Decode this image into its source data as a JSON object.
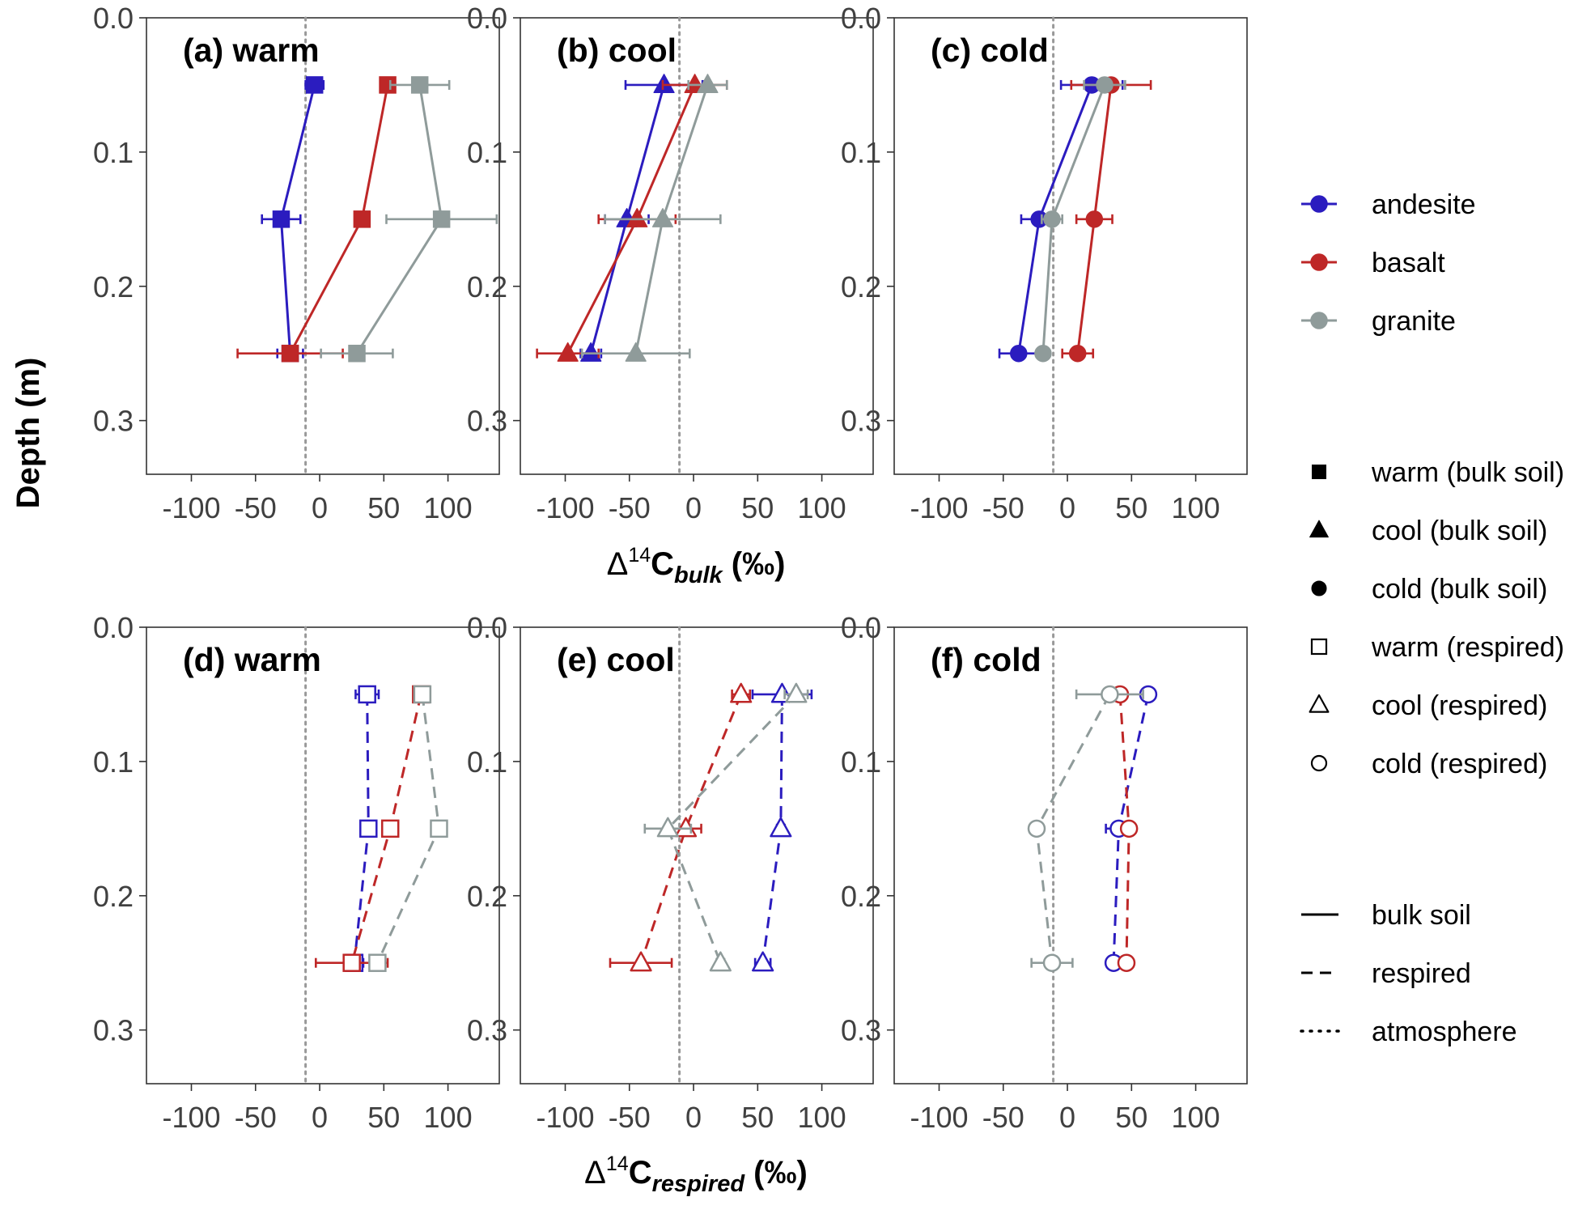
{
  "colors": {
    "andesite": "#2b1cbf",
    "basalt": "#be2727",
    "granite": "#8f9b9a",
    "atmosphere_line": "#999999",
    "axis_text": "#404040"
  },
  "y_axis_label": "Depth (m)",
  "x_axis_labels": [
    {
      "prefix": "Δ",
      "sup": "14",
      "main": "C",
      "sub": "bulk",
      "suffix": " (‰)"
    },
    {
      "prefix": "Δ",
      "sup": "14",
      "main": "C",
      "sub": "respired",
      "suffix": " (‰)"
    }
  ],
  "legend": {
    "rock_type": [
      {
        "label": "andesite",
        "color": "#2b1cbf"
      },
      {
        "label": "basalt",
        "color": "#be2727"
      },
      {
        "label": "granite",
        "color": "#8f9b9a"
      }
    ],
    "shapes": [
      {
        "label": "warm (bulk soil)",
        "shape": "square-filled"
      },
      {
        "label": "cool (bulk soil)",
        "shape": "triangle-filled"
      },
      {
        "label": "cold (bulk soil)",
        "shape": "circle-filled"
      },
      {
        "label": "warm (respired)",
        "shape": "square-open"
      },
      {
        "label": "cool (respired)",
        "shape": "triangle-open"
      },
      {
        "label": "cold (respired)",
        "shape": "circle-open"
      }
    ],
    "lines": [
      {
        "label": "bulk soil",
        "dash": "solid"
      },
      {
        "label": "respired",
        "dash": "dashed"
      },
      {
        "label": "atmosphere",
        "dash": "dotted"
      }
    ]
  },
  "chart_data": [
    {
      "panel": "a",
      "title": "(a) warm",
      "type": "line",
      "shape": "square",
      "filled": true,
      "dash": "solid",
      "xlim": [
        -135,
        140
      ],
      "ylim": [
        0.0,
        0.34
      ],
      "xticks": [
        -100,
        -50,
        0,
        50,
        100
      ],
      "xtick_labels": [
        "-100",
        "-50",
        "0",
        "50",
        "100"
      ],
      "yticks": [
        0.0,
        0.1,
        0.2,
        0.3
      ],
      "ytick_labels": [
        "0.0",
        "0.1",
        "0.2",
        "0.3"
      ],
      "atmosphere_x": -11,
      "series": [
        {
          "name": "andesite",
          "points": [
            {
              "x": -4,
              "y": 0.05,
              "err": 7
            },
            {
              "x": -30,
              "y": 0.15,
              "err": 15
            },
            {
              "x": -23,
              "y": 0.25,
              "err": 10
            }
          ]
        },
        {
          "name": "basalt",
          "points": [
            {
              "x": 53,
              "y": 0.05,
              "err": 0
            },
            {
              "x": 33,
              "y": 0.15,
              "err": 0
            },
            {
              "x": -23,
              "y": 0.25,
              "err": 41
            }
          ]
        },
        {
          "name": "granite",
          "points": [
            {
              "x": 78,
              "y": 0.05,
              "err": 23
            },
            {
              "x": 95,
              "y": 0.15,
              "err": 43
            },
            {
              "x": 29,
              "y": 0.25,
              "err": 28
            }
          ]
        }
      ]
    },
    {
      "panel": "b",
      "title": "(b) cool",
      "type": "line",
      "shape": "triangle",
      "filled": true,
      "dash": "solid",
      "xlim": [
        -135,
        140
      ],
      "ylim": [
        0.0,
        0.34
      ],
      "xticks": [
        -100,
        -50,
        0,
        50,
        100
      ],
      "xtick_labels": [
        "-100",
        "-50",
        "0",
        "50",
        "100"
      ],
      "yticks": [
        0.0,
        0.1,
        0.2,
        0.3
      ],
      "ytick_labels": [
        "0.0",
        "0.1",
        "0.2",
        "0.3"
      ],
      "atmosphere_x": -11,
      "series": [
        {
          "name": "andesite",
          "points": [
            {
              "x": -23,
              "y": 0.05,
              "err": 30
            },
            {
              "x": -52,
              "y": 0.15,
              "err": 17
            },
            {
              "x": -80,
              "y": 0.25,
              "err": 8
            }
          ]
        },
        {
          "name": "basalt",
          "points": [
            {
              "x": 1,
              "y": 0.05,
              "err": 25
            },
            {
              "x": -44,
              "y": 0.15,
              "err": 30
            },
            {
              "x": -98,
              "y": 0.25,
              "err": 24
            }
          ]
        },
        {
          "name": "granite",
          "points": [
            {
              "x": 11,
              "y": 0.05,
              "err": 15
            },
            {
              "x": -24,
              "y": 0.15,
              "err": 45
            },
            {
              "x": -45,
              "y": 0.25,
              "err": 42
            }
          ]
        }
      ]
    },
    {
      "panel": "c",
      "title": "(c) cold",
      "type": "line",
      "shape": "circle",
      "filled": true,
      "dash": "solid",
      "xlim": [
        -135,
        140
      ],
      "ylim": [
        0.0,
        0.34
      ],
      "xticks": [
        -100,
        -50,
        0,
        50,
        100
      ],
      "xtick_labels": [
        "-100",
        "-50",
        "0",
        "50",
        "100"
      ],
      "yticks": [
        0.0,
        0.1,
        0.2,
        0.3
      ],
      "ytick_labels": [
        "0.0",
        "0.1",
        "0.2",
        "0.3"
      ],
      "atmosphere_x": -11,
      "series": [
        {
          "name": "andesite",
          "points": [
            {
              "x": 19,
              "y": 0.05,
              "err": 24
            },
            {
              "x": -22,
              "y": 0.15,
              "err": 14
            },
            {
              "x": -38,
              "y": 0.25,
              "err": 15
            }
          ]
        },
        {
          "name": "basalt",
          "points": [
            {
              "x": 34,
              "y": 0.05,
              "err": 31
            },
            {
              "x": 21,
              "y": 0.15,
              "err": 14
            },
            {
              "x": 8,
              "y": 0.25,
              "err": 12
            }
          ]
        },
        {
          "name": "granite",
          "points": [
            {
              "x": 29,
              "y": 0.05,
              "err": 16
            },
            {
              "x": -12,
              "y": 0.15,
              "err": 8
            },
            {
              "x": -19,
              "y": 0.25,
              "err": 4
            }
          ]
        }
      ]
    },
    {
      "panel": "d",
      "title": "(d) warm",
      "type": "line",
      "shape": "square",
      "filled": false,
      "dash": "dashed",
      "xlim": [
        -135,
        140
      ],
      "ylim": [
        0.0,
        0.34
      ],
      "xticks": [
        -100,
        -50,
        0,
        50,
        100
      ],
      "xtick_labels": [
        "-100",
        "-50",
        "0",
        "50",
        "100"
      ],
      "yticks": [
        0.0,
        0.1,
        0.2,
        0.3
      ],
      "ytick_labels": [
        "0.0",
        "0.1",
        "0.2",
        "0.3"
      ],
      "atmosphere_x": -11,
      "series": [
        {
          "name": "andesite",
          "points": [
            {
              "x": 37,
              "y": 0.05,
              "err": 9
            },
            {
              "x": 38,
              "y": 0.15,
              "err": 6
            },
            {
              "x": 27,
              "y": 0.25,
              "err": 7
            }
          ]
        },
        {
          "name": "basalt",
          "points": [
            {
              "x": 79,
              "y": 0.05,
              "err": 3
            },
            {
              "x": 55,
              "y": 0.15,
              "err": 5
            },
            {
              "x": 25,
              "y": 0.25,
              "err": 28
            }
          ]
        },
        {
          "name": "granite",
          "points": [
            {
              "x": 80,
              "y": 0.05,
              "err": 3
            },
            {
              "x": 93,
              "y": 0.15,
              "err": 6
            },
            {
              "x": 45,
              "y": 0.25,
              "err": 4
            }
          ]
        }
      ]
    },
    {
      "panel": "e",
      "title": "(e) cool",
      "type": "line",
      "shape": "triangle",
      "filled": false,
      "dash": "dashed",
      "xlim": [
        -135,
        140
      ],
      "ylim": [
        0.0,
        0.34
      ],
      "xticks": [
        -100,
        -50,
        0,
        50,
        100
      ],
      "xtick_labels": [
        "-100",
        "-50",
        "0",
        "50",
        "100"
      ],
      "yticks": [
        0.0,
        0.1,
        0.2,
        0.3
      ],
      "ytick_labels": [
        "0.0",
        "0.1",
        "0.2",
        "0.3"
      ],
      "atmosphere_x": -11,
      "series": [
        {
          "name": "andesite",
          "points": [
            {
              "x": 69,
              "y": 0.05,
              "err": 23
            },
            {
              "x": 68,
              "y": 0.15,
              "err": 3
            },
            {
              "x": 54,
              "y": 0.25,
              "err": 6
            }
          ]
        },
        {
          "name": "basalt",
          "points": [
            {
              "x": 37,
              "y": 0.05,
              "err": 7
            },
            {
              "x": -6,
              "y": 0.15,
              "err": 12
            },
            {
              "x": -41,
              "y": 0.25,
              "err": 24
            }
          ]
        },
        {
          "name": "granite",
          "points": [
            {
              "x": 80,
              "y": 0.05,
              "err": 9
            },
            {
              "x": -20,
              "y": 0.15,
              "err": 18
            },
            {
              "x": 21,
              "y": 0.25,
              "err": 3
            }
          ]
        }
      ]
    },
    {
      "panel": "f",
      "title": "(f) cold",
      "type": "line",
      "shape": "circle",
      "filled": false,
      "dash": "dashed",
      "xlim": [
        -135,
        140
      ],
      "ylim": [
        0.0,
        0.34
      ],
      "xticks": [
        -100,
        -50,
        0,
        50,
        100
      ],
      "xtick_labels": [
        "-100",
        "-50",
        "0",
        "50",
        "100"
      ],
      "yticks": [
        0.0,
        0.1,
        0.2,
        0.3
      ],
      "ytick_labels": [
        "0.0",
        "0.1",
        "0.2",
        "0.3"
      ],
      "atmosphere_x": -11,
      "series": [
        {
          "name": "andesite",
          "points": [
            {
              "x": 63,
              "y": 0.05,
              "err": 5
            },
            {
              "x": 40,
              "y": 0.15,
              "err": 10
            },
            {
              "x": 36,
              "y": 0.25,
              "err": 4
            }
          ]
        },
        {
          "name": "basalt",
          "points": [
            {
              "x": 41,
              "y": 0.05,
              "err": 5
            },
            {
              "x": 48,
              "y": 0.15,
              "err": 5
            },
            {
              "x": 46,
              "y": 0.25,
              "err": 3
            }
          ]
        },
        {
          "name": "granite",
          "points": [
            {
              "x": 33,
              "y": 0.05,
              "err": 26
            },
            {
              "x": -24,
              "y": 0.15,
              "err": 3
            },
            {
              "x": -12,
              "y": 0.25,
              "err": 16
            }
          ]
        }
      ]
    }
  ]
}
